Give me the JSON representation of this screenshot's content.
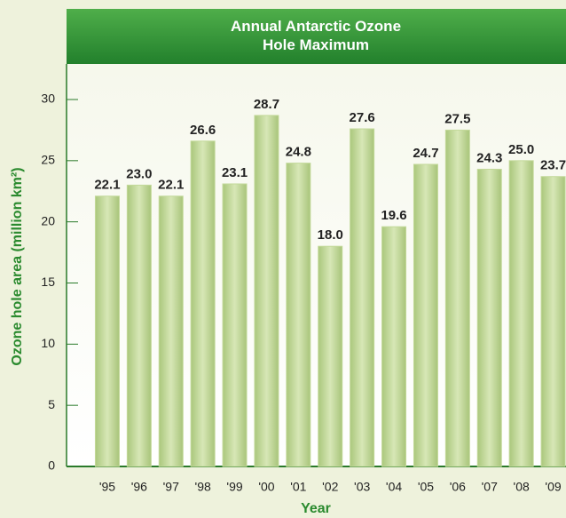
{
  "chart_data": {
    "type": "bar",
    "title": "Annual Antarctic Ozone Hole Maximum",
    "y_label": "Ozone hole area (million km²)",
    "x_label": "Year",
    "categories": [
      "'95",
      "'96",
      "'97",
      "'98",
      "'99",
      "'00",
      "'01",
      "'02",
      "'03",
      "'04",
      "'05",
      "'06",
      "'07",
      "'08",
      "'09"
    ],
    "values": [
      22.1,
      23.0,
      22.1,
      26.6,
      23.1,
      28.7,
      24.8,
      18.0,
      27.6,
      19.6,
      24.7,
      27.5,
      24.3,
      25.0,
      23.7
    ],
    "value_labels": [
      "22.1",
      "23.0",
      "22.1",
      "26.6",
      "23.1",
      "28.7",
      "24.8",
      "18.0",
      "27.6",
      "19.6",
      "24.7",
      "27.5",
      "24.3",
      "25.0",
      "23.7"
    ],
    "color": "#c3d99a",
    "ylim": [
      0,
      30
    ],
    "yticks": [
      0,
      5,
      10,
      15,
      20,
      25,
      30
    ]
  }
}
